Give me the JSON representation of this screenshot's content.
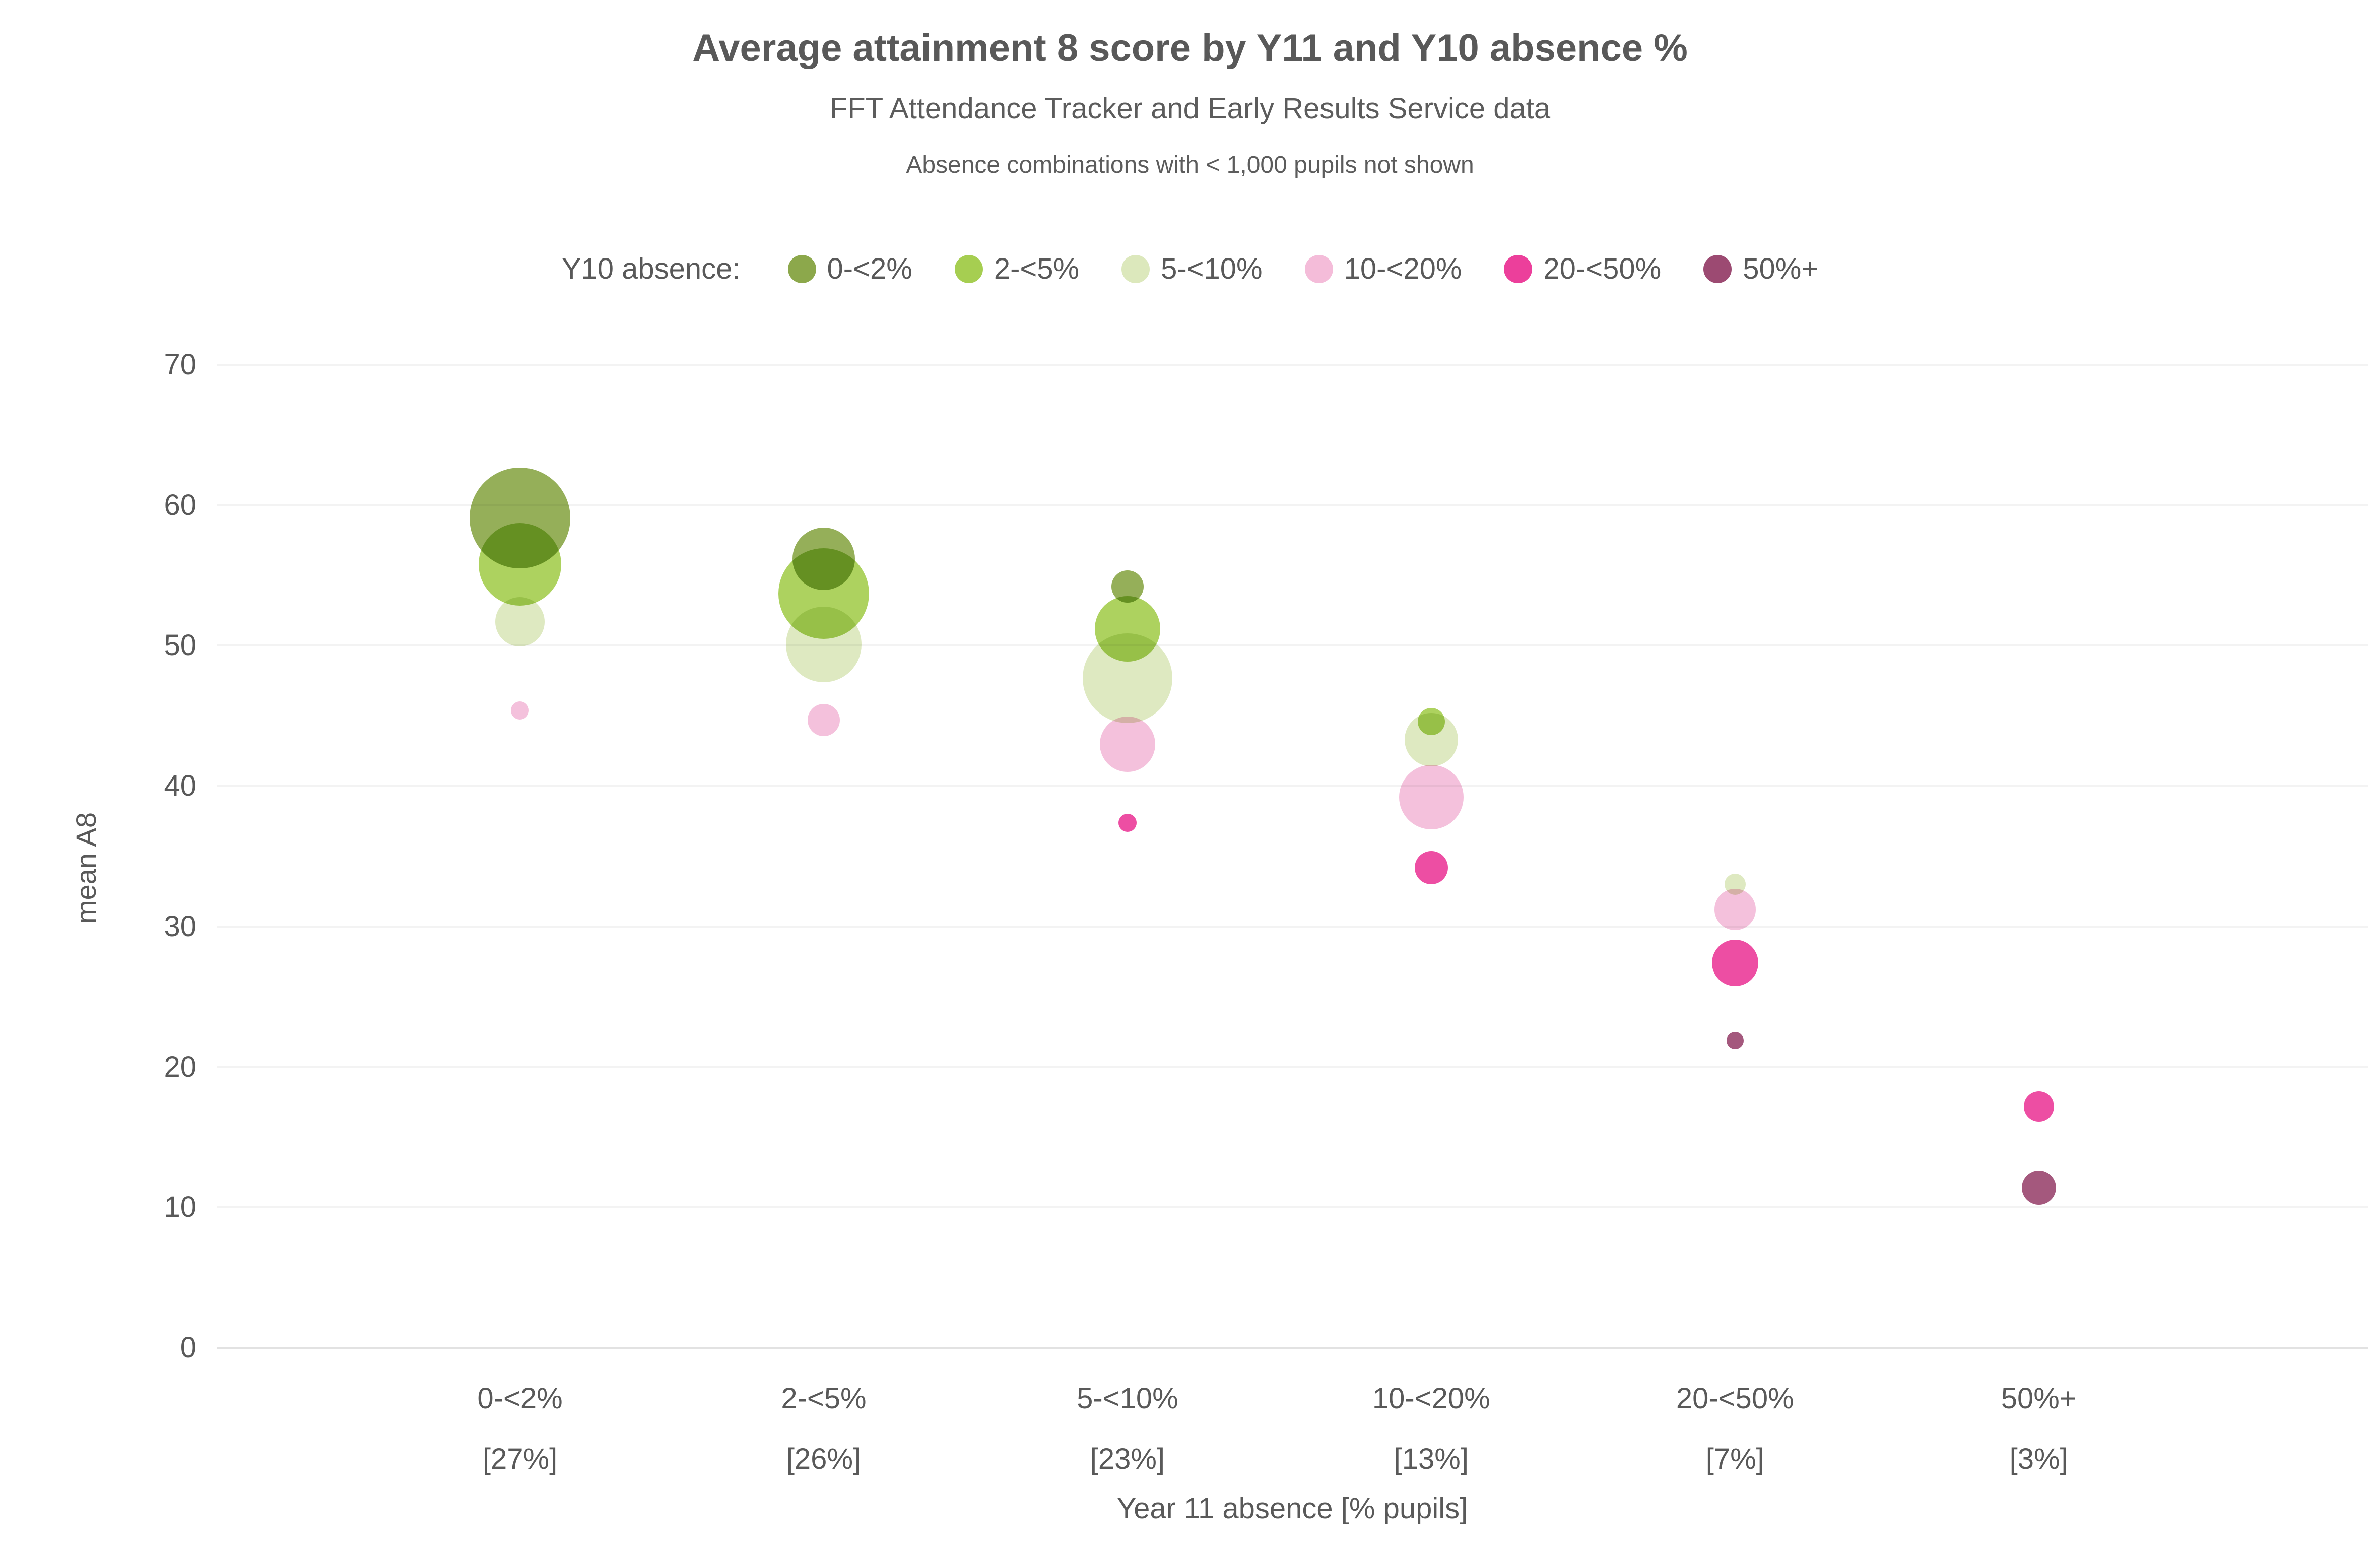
{
  "header": {
    "title": "Average attainment 8 score by Y11 and Y10 absence %",
    "subtitle": "FFT Attendance Tracker and Early Results Service data",
    "note": "Absence combinations with < 1,000 pupils not shown"
  },
  "chart_data": {
    "type": "bubble",
    "title": "Average attainment 8 score by Y11 and Y10 absence %",
    "subtitle": "FFT Attendance Tracker and Early Results Service data",
    "note": "Absence combinations with < 1,000 pupils not shown",
    "xlabel": "Year 11 absence [% pupils]",
    "ylabel": "mean A8",
    "ylim": [
      0,
      70
    ],
    "yticks": [
      0,
      10,
      20,
      30,
      40,
      50,
      60,
      70
    ],
    "grid": "horizontal",
    "legend_position": "top",
    "legend_title": "Y10 absence:",
    "categories": [
      {
        "label": "0-<2%",
        "pupil_pct": "[27%]",
        "xfrac": 0.141
      },
      {
        "label": "2-<5%",
        "pupil_pct": "[26%]",
        "xfrac": 0.2822
      },
      {
        "label": "5-<10%",
        "pupil_pct": "[23%]",
        "xfrac": 0.4234
      },
      {
        "label": "10-<20%",
        "pupil_pct": "[13%]",
        "xfrac": 0.5646
      },
      {
        "label": "20-<50%",
        "pupil_pct": "[7%]",
        "xfrac": 0.7058
      },
      {
        "label": "50%+",
        "pupil_pct": "[3%]",
        "xfrac": 0.847
      }
    ],
    "series": [
      {
        "name": "0-<2%",
        "color": "#8CA84B",
        "points": [
          {
            "cat": 0,
            "y": 59.1,
            "r": 100
          },
          {
            "cat": 1,
            "y": 56.2,
            "r": 62
          },
          {
            "cat": 2,
            "y": 54.2,
            "r": 32
          }
        ]
      },
      {
        "name": "2-<5%",
        "color": "#A6CE51",
        "points": [
          {
            "cat": 0,
            "y": 55.8,
            "r": 82
          },
          {
            "cat": 1,
            "y": 53.7,
            "r": 90
          },
          {
            "cat": 2,
            "y": 51.2,
            "r": 65
          },
          {
            "cat": 3,
            "y": 44.6,
            "r": 27
          }
        ]
      },
      {
        "name": "5-<10%",
        "color": "#DCE8BC",
        "points": [
          {
            "cat": 0,
            "y": 51.7,
            "r": 49
          },
          {
            "cat": 1,
            "y": 50.1,
            "r": 75
          },
          {
            "cat": 2,
            "y": 47.7,
            "r": 89
          },
          {
            "cat": 3,
            "y": 43.3,
            "r": 53
          },
          {
            "cat": 4,
            "y": 33.0,
            "r": 21
          }
        ]
      },
      {
        "name": "10-<20%",
        "color": "#F4BCD9",
        "points": [
          {
            "cat": 0,
            "y": 45.4,
            "r": 18
          },
          {
            "cat": 1,
            "y": 44.7,
            "r": 32
          },
          {
            "cat": 2,
            "y": 43.0,
            "r": 55
          },
          {
            "cat": 3,
            "y": 39.2,
            "r": 64
          },
          {
            "cat": 4,
            "y": 31.2,
            "r": 41
          }
        ]
      },
      {
        "name": "20-<50%",
        "color": "#EC3F9B",
        "points": [
          {
            "cat": 2,
            "y": 37.4,
            "r": 18
          },
          {
            "cat": 3,
            "y": 34.2,
            "r": 33
          },
          {
            "cat": 4,
            "y": 27.4,
            "r": 46
          },
          {
            "cat": 5,
            "y": 17.2,
            "r": 30
          }
        ]
      },
      {
        "name": "50%+",
        "color": "#9C4A72",
        "points": [
          {
            "cat": 4,
            "y": 21.9,
            "r": 17
          },
          {
            "cat": 5,
            "y": 11.4,
            "r": 34
          }
        ]
      }
    ],
    "colors": {
      "text": "#595959",
      "gridline": "#f3f3f3",
      "axis_line": "#e2e2e2",
      "background": "#ffffff"
    }
  }
}
